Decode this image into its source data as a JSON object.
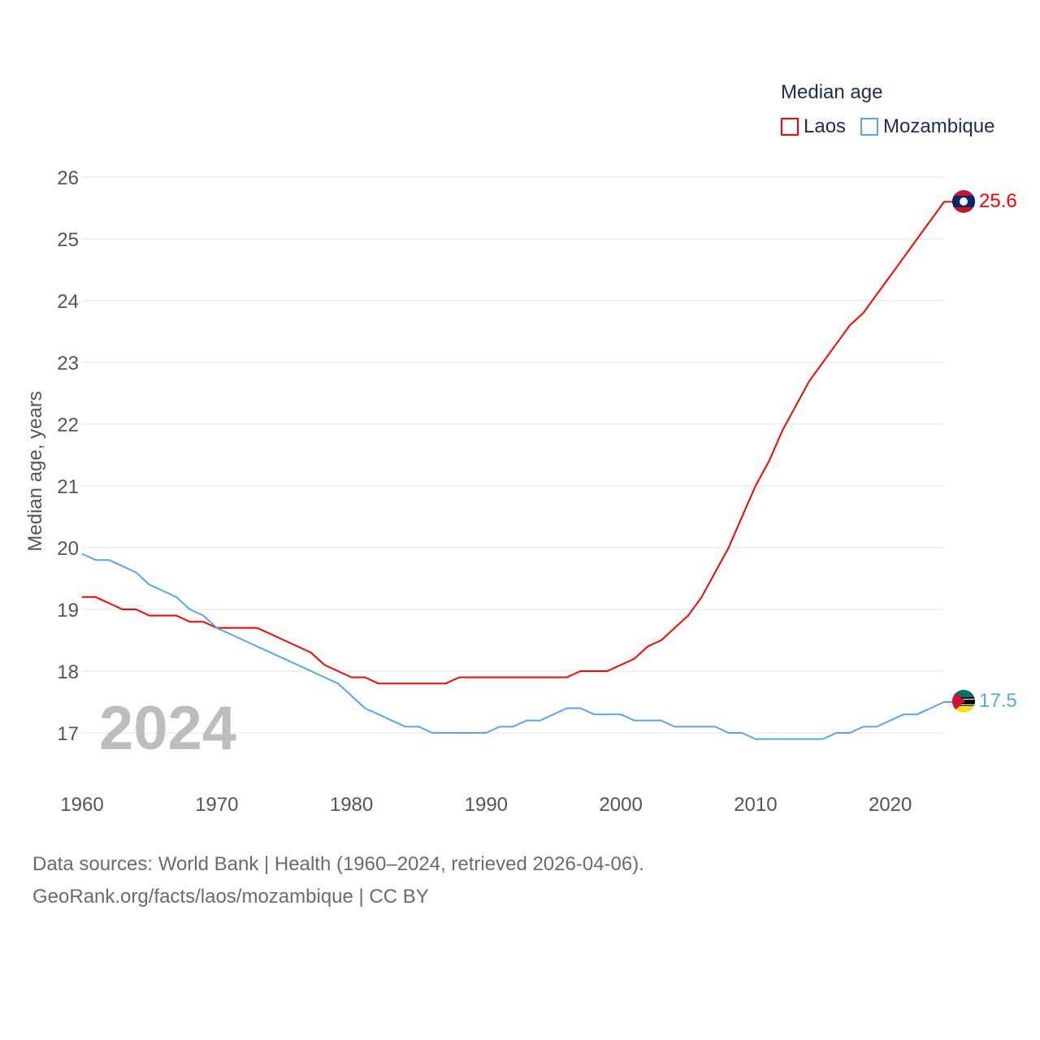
{
  "chart_data": {
    "type": "line",
    "title": "Median age",
    "xlabel": "",
    "ylabel": "Median age, years",
    "xlim": [
      1960,
      2024
    ],
    "ylim": [
      16.3,
      26.2
    ],
    "x_ticks": [
      1960,
      1970,
      1980,
      1990,
      2000,
      2010,
      2020
    ],
    "y_ticks": [
      17,
      18,
      19,
      20,
      21,
      22,
      23,
      24,
      25,
      26
    ],
    "grid": true,
    "legend_placement": "top-right",
    "year_watermark": "2024",
    "x": [
      1960,
      1961,
      1962,
      1963,
      1964,
      1965,
      1966,
      1967,
      1968,
      1969,
      1970,
      1971,
      1972,
      1973,
      1974,
      1975,
      1976,
      1977,
      1978,
      1979,
      1980,
      1981,
      1982,
      1983,
      1984,
      1985,
      1986,
      1987,
      1988,
      1989,
      1990,
      1991,
      1992,
      1993,
      1994,
      1995,
      1996,
      1997,
      1998,
      1999,
      2000,
      2001,
      2002,
      2003,
      2004,
      2005,
      2006,
      2007,
      2008,
      2009,
      2010,
      2011,
      2012,
      2013,
      2014,
      2015,
      2016,
      2017,
      2018,
      2019,
      2020,
      2021,
      2022,
      2023,
      2024
    ],
    "series": [
      {
        "name": "Laos",
        "color": "#ff0000",
        "end_label": "25.6",
        "values": [
          19.2,
          19.2,
          19.1,
          19.0,
          19.0,
          18.9,
          18.9,
          18.9,
          18.8,
          18.8,
          18.7,
          18.7,
          18.7,
          18.7,
          18.6,
          18.5,
          18.4,
          18.3,
          18.1,
          18.0,
          17.9,
          17.9,
          17.8,
          17.8,
          17.8,
          17.8,
          17.8,
          17.8,
          17.9,
          17.9,
          17.9,
          17.9,
          17.9,
          17.9,
          17.9,
          17.9,
          17.9,
          18.0,
          18.0,
          18.0,
          18.1,
          18.2,
          18.4,
          18.5,
          18.7,
          18.9,
          19.2,
          19.6,
          20.0,
          20.5,
          21.0,
          21.4,
          21.9,
          22.3,
          22.7,
          23.0,
          23.3,
          23.6,
          23.8,
          24.1,
          24.4,
          24.7,
          25.0,
          25.3,
          25.6
        ]
      },
      {
        "name": "Mozambique",
        "color": "#5aa5ea",
        "end_label": "17.5",
        "values": [
          19.9,
          19.8,
          19.8,
          19.7,
          19.6,
          19.4,
          19.3,
          19.2,
          19.0,
          18.9,
          18.7,
          18.6,
          18.5,
          18.4,
          18.3,
          18.2,
          18.1,
          18.0,
          17.9,
          17.8,
          17.6,
          17.4,
          17.3,
          17.2,
          17.1,
          17.1,
          17.0,
          17.0,
          17.0,
          17.0,
          17.0,
          17.1,
          17.1,
          17.2,
          17.2,
          17.3,
          17.4,
          17.4,
          17.3,
          17.3,
          17.3,
          17.2,
          17.2,
          17.2,
          17.1,
          17.1,
          17.1,
          17.1,
          17.0,
          17.0,
          16.9,
          16.9,
          16.9,
          16.9,
          16.9,
          16.9,
          17.0,
          17.0,
          17.1,
          17.1,
          17.2,
          17.3,
          17.3,
          17.4,
          17.5
        ]
      }
    ]
  },
  "footer": {
    "line1": "Data sources: World Bank | Health (1960–2024, retrieved 2026-04-06).",
    "line2": "GeoRank.org/facts/laos/mozambique | CC BY"
  }
}
